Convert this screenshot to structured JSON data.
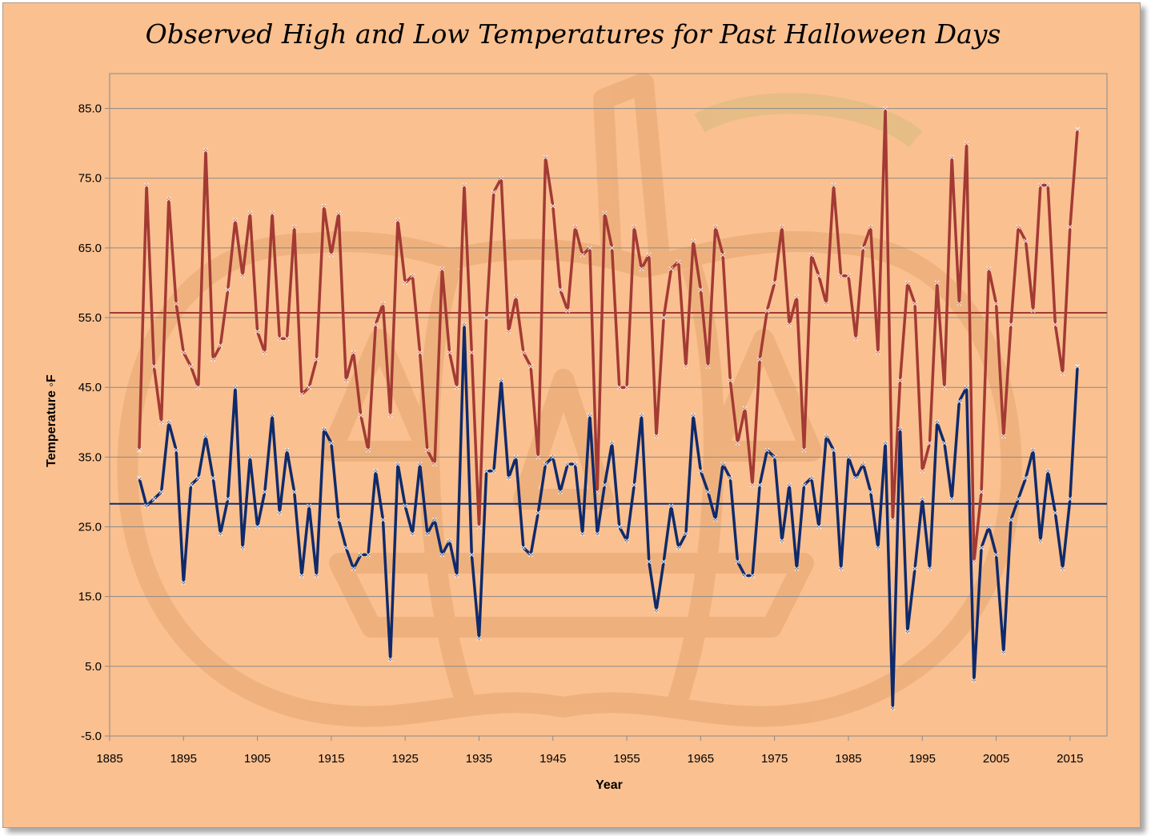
{
  "chart_data": {
    "type": "line",
    "title": "Observed High and Low Temperatures for Past Halloween Days",
    "xlabel": "Year",
    "ylabel": "Temperature ◦F",
    "xlim": [
      1885,
      2020
    ],
    "ylim": [
      -5,
      90
    ],
    "xticks": [
      1885,
      1895,
      1905,
      1915,
      1925,
      1935,
      1945,
      1955,
      1965,
      1975,
      1985,
      1995,
      2005,
      2015
    ],
    "yticks": [
      -5,
      5,
      15,
      25,
      35,
      45,
      55,
      65,
      75,
      85
    ],
    "ytick_labels": [
      "-5.0",
      "5.0",
      "15.0",
      "25.0",
      "35.0",
      "45.0",
      "55.0",
      "65.0",
      "75.0",
      "85.0"
    ],
    "grid": "horizontal",
    "legend": "none",
    "colors": {
      "high": "#a33a34",
      "low": "#0f2a6b",
      "background": "#fac090",
      "grid": "#8a8a8a"
    },
    "reference_lines": [
      {
        "value": 55.7,
        "color": "#a33a34"
      },
      {
        "value": 28.3,
        "color": "#0f2a6b"
      }
    ],
    "x": [
      1889,
      1890,
      1891,
      1892,
      1893,
      1894,
      1895,
      1896,
      1897,
      1898,
      1899,
      1900,
      1901,
      1902,
      1903,
      1904,
      1905,
      1906,
      1907,
      1908,
      1909,
      1910,
      1911,
      1912,
      1913,
      1914,
      1915,
      1916,
      1917,
      1918,
      1919,
      1920,
      1921,
      1922,
      1923,
      1924,
      1925,
      1926,
      1927,
      1928,
      1929,
      1930,
      1931,
      1932,
      1933,
      1934,
      1935,
      1936,
      1937,
      1938,
      1939,
      1940,
      1941,
      1942,
      1943,
      1944,
      1945,
      1946,
      1947,
      1948,
      1949,
      1950,
      1951,
      1952,
      1953,
      1954,
      1955,
      1956,
      1957,
      1958,
      1959,
      1960,
      1961,
      1962,
      1963,
      1964,
      1965,
      1966,
      1967,
      1968,
      1969,
      1970,
      1971,
      1972,
      1973,
      1974,
      1975,
      1976,
      1977,
      1978,
      1979,
      1980,
      1981,
      1982,
      1983,
      1984,
      1985,
      1986,
      1987,
      1988,
      1989,
      1990,
      1991,
      1992,
      1993,
      1994,
      1995,
      1996,
      1997,
      1998,
      1999,
      2000,
      2001,
      2002,
      2003,
      2004,
      2005,
      2006,
      2007,
      2008,
      2009,
      2010,
      2011,
      2012,
      2013,
      2014,
      2015,
      2016
    ],
    "series": [
      {
        "key": "high",
        "values": [
          36,
          74,
          48,
          40,
          72,
          57,
          50,
          48,
          45,
          79,
          49,
          51,
          59,
          69,
          61,
          70,
          53,
          50,
          70,
          52,
          52,
          68,
          44,
          45,
          49,
          71,
          64,
          70,
          46,
          50,
          41,
          36,
          54,
          57,
          41,
          69,
          60,
          61,
          50,
          36,
          34,
          62,
          50,
          45,
          74,
          50,
          25,
          55,
          73,
          75,
          53,
          58,
          50,
          48,
          35,
          78,
          71,
          59,
          56,
          68,
          64,
          65,
          30,
          70,
          65,
          45,
          45,
          68,
          62,
          64,
          38,
          55,
          62,
          63,
          48,
          66,
          59,
          48,
          68,
          64,
          46,
          37,
          42,
          31,
          49,
          56,
          60,
          68,
          54,
          58,
          36,
          64,
          61,
          57,
          74,
          61,
          61,
          52,
          65,
          68,
          50,
          85,
          26,
          46,
          60,
          57,
          33,
          37,
          60,
          45,
          78,
          57,
          80,
          20,
          30,
          62,
          57,
          38,
          54,
          68,
          66,
          56,
          74,
          74,
          54,
          47,
          68,
          82
        ]
      },
      {
        "key": "low",
        "values": [
          32,
          28,
          29,
          30,
          40,
          36,
          17,
          31,
          32,
          38,
          32,
          24,
          29,
          45,
          22,
          35,
          25,
          30,
          41,
          27,
          36,
          30,
          18,
          28,
          18,
          39,
          37,
          26,
          22,
          19,
          21,
          21,
          33,
          26,
          6,
          34,
          28,
          24,
          34,
          24,
          26,
          21,
          23,
          18,
          54,
          21,
          9,
          33,
          33,
          46,
          32,
          35,
          22,
          21,
          27,
          34,
          35,
          30,
          34,
          34,
          24,
          41,
          24,
          31,
          37,
          25,
          23,
          31,
          41,
          20,
          13,
          20,
          28,
          22,
          24,
          41,
          33,
          30,
          26,
          34,
          32,
          20,
          18,
          18,
          31,
          36,
          35,
          23,
          31,
          19,
          31,
          32,
          25,
          38,
          36,
          19,
          35,
          32,
          34,
          30,
          22,
          37,
          -1,
          39,
          10,
          19,
          29,
          19,
          40,
          37,
          29,
          43,
          45,
          3,
          22,
          25,
          21,
          7,
          26,
          29,
          32,
          36,
          23,
          33,
          27,
          19,
          29,
          48
        ]
      }
    ]
  }
}
